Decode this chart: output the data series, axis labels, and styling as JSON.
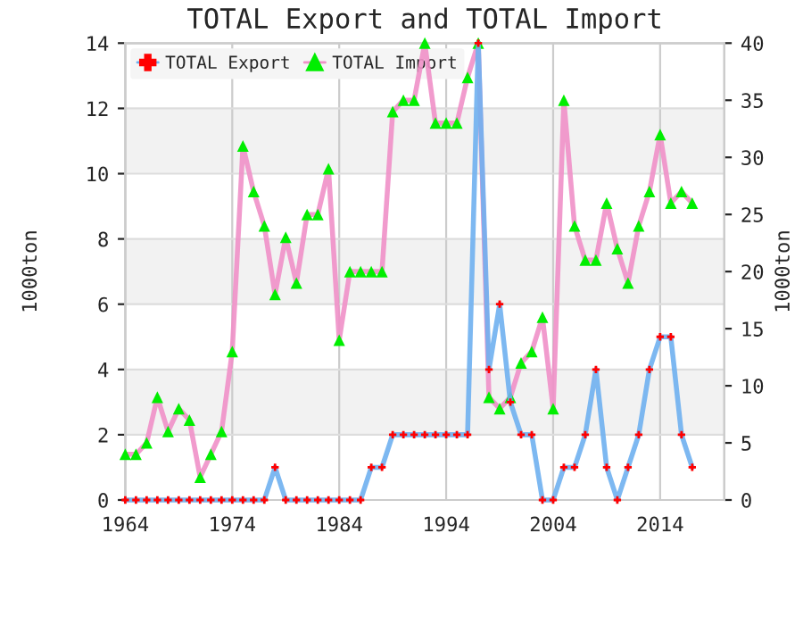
{
  "chart_data": {
    "type": "line",
    "title": "TOTAL Export and TOTAL Import",
    "ylabel": "1000ton",
    "y2label": "1000ton",
    "x": [
      1964,
      1965,
      1966,
      1967,
      1968,
      1969,
      1970,
      1971,
      1972,
      1973,
      1974,
      1975,
      1976,
      1977,
      1978,
      1979,
      1980,
      1981,
      1982,
      1983,
      1984,
      1985,
      1986,
      1987,
      1988,
      1989,
      1990,
      1991,
      1992,
      1993,
      1994,
      1995,
      1996,
      1997,
      1998,
      1999,
      2000,
      2001,
      2002,
      2003,
      2004,
      2005,
      2006,
      2007,
      2008,
      2009,
      2010,
      2011,
      2012,
      2013,
      2014,
      2015,
      2016,
      2017
    ],
    "series": [
      {
        "name": "TOTAL Export",
        "color": "#6fb0f0",
        "colors": [
          "#ff0000",
          "#ff0000",
          "#ff0000",
          "#ff0000",
          "#ff0000",
          "#ff0000",
          "#ff0000",
          "#ff0000",
          "#ff0000",
          "#ff0000",
          "#ff0000",
          "#ff0000",
          "#ff0000",
          "#ff0000",
          "#ff0000",
          "#ff0000",
          "#ff0000",
          "#ff0000",
          "#ff0000",
          "#ff0000",
          "#ff0000",
          "#ff0000",
          "#ff0000",
          "#ff0000",
          "#ff0000",
          "#ff0000",
          "#ff0000",
          "#ff0000",
          "#ff0000",
          "#ff0000",
          "#ff0000",
          "#ff0000",
          "#ff0000",
          "#ff0000",
          "#ff0000",
          "#ff0000",
          "#ff0000",
          "#ff0000",
          "#ff0000",
          "#ff0000",
          "#ff0000",
          "#ff0000",
          "#ff0000",
          "#ff0000",
          "#ff0000",
          "#ff0000",
          "#ff0000",
          "#ff0000",
          "#ff0000",
          "#ff0000",
          "#ff0000",
          "#ff0000",
          "#ff0000",
          "#ff0000"
        ],
        "marker": "cross",
        "values": [
          0,
          0,
          0,
          0,
          0,
          0,
          0,
          0,
          0,
          0,
          0,
          0,
          0,
          0,
          1,
          0,
          0,
          0,
          0,
          0,
          0,
          0,
          0,
          1,
          1,
          2,
          2,
          2,
          2,
          2,
          2,
          2,
          2,
          14,
          4,
          6,
          3,
          2,
          2,
          0,
          0,
          1,
          1,
          2,
          4,
          1,
          0,
          1,
          2,
          4,
          5,
          5,
          2,
          1
        ]
      },
      {
        "name": "TOTAL Import",
        "color": "#f090c8",
        "colors": [
          "#00ee00",
          "#00ee00",
          "#00ee00",
          "#00ee00",
          "#00ee00",
          "#00ee00",
          "#00ee00",
          "#00ee00",
          "#00ee00",
          "#00ee00",
          "#00ee00",
          "#00ee00",
          "#00ee00",
          "#00ee00",
          "#00ee00",
          "#00ee00",
          "#00ee00",
          "#00ee00",
          "#00ee00",
          "#00ee00",
          "#00ee00",
          "#00ee00",
          "#00ee00",
          "#00ee00",
          "#00ee00",
          "#00ee00",
          "#00ee00",
          "#00ee00",
          "#00ee00",
          "#00ee00",
          "#00ee00",
          "#00ee00",
          "#00ee00",
          "#00ee00",
          "#00ee00",
          "#00ee00",
          "#00ee00",
          "#00ee00",
          "#00ee00",
          "#00ee00",
          "#00ee00",
          "#00ee00",
          "#00ee00",
          "#00ee00",
          "#00ee00",
          "#00ee00",
          "#00ee00",
          "#00ee00",
          "#00ee00",
          "#00ee00",
          "#00ee00",
          "#00ee00",
          "#00ee00",
          "#00ee00"
        ],
        "marker": "triangle",
        "axis": "y2",
        "values": [
          4,
          4,
          5,
          9,
          6,
          8,
          7,
          2,
          4,
          6,
          13,
          31,
          27,
          24,
          18,
          23,
          19,
          25,
          25,
          29,
          14,
          20,
          20,
          20,
          20,
          34,
          35,
          35,
          40,
          33,
          33,
          33,
          37,
          40,
          9,
          8,
          9,
          12,
          13,
          16,
          8,
          35,
          24,
          21,
          21,
          26,
          22,
          19,
          24,
          27,
          32,
          26,
          27,
          26
        ]
      }
    ],
    "xlim": [
      1964,
      2020
    ],
    "xticks": [
      1964,
      1974,
      1984,
      1994,
      2004,
      2014
    ],
    "ylim": [
      0,
      14
    ],
    "yticks": [
      0,
      2,
      4,
      6,
      8,
      10,
      12,
      14
    ],
    "y2lim": [
      0,
      40
    ],
    "y2ticks": [
      0,
      5,
      10,
      15,
      20,
      25,
      30,
      35,
      40
    ],
    "grid": true,
    "legend": "top left"
  }
}
